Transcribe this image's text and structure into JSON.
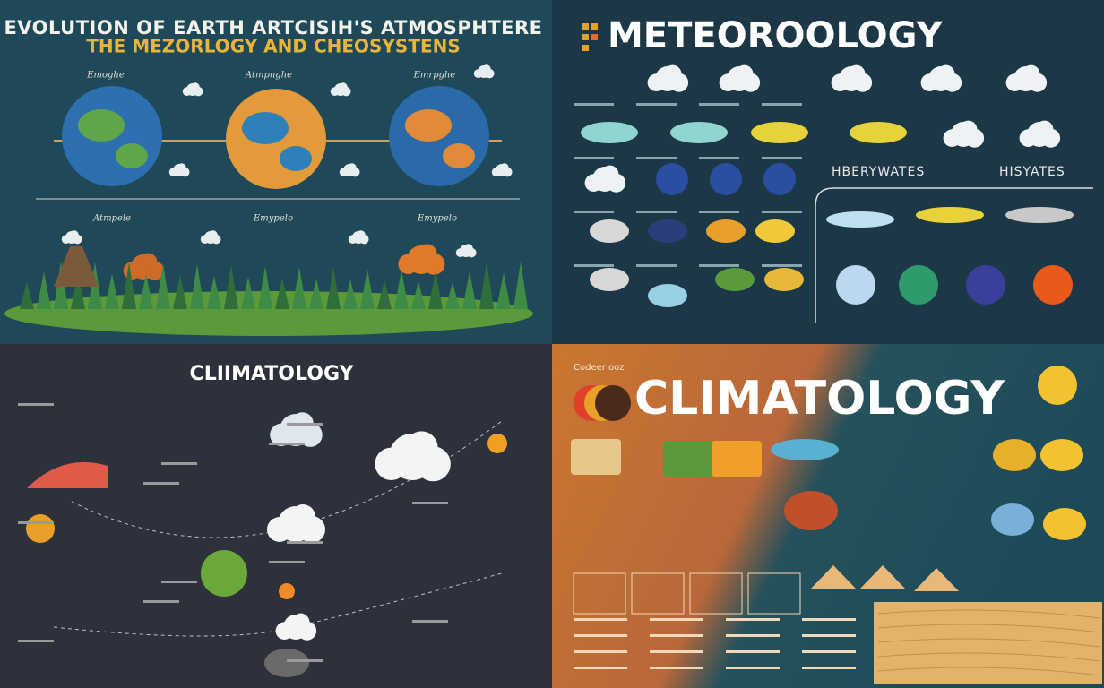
{
  "panels": [
    {
      "title": "EVOLUTION OF EARTH ARTCISIH'S ATMOSPHTERE",
      "subtitle": "THE MEZORLOGY AND CHEOSYSTENS",
      "labels": [
        "Emoghe",
        "Atmpnghe",
        "Emrpghe",
        "Atmpele",
        "Emypelo",
        "Emypelo"
      ]
    },
    {
      "title": "METEOROOLOGY",
      "labels": [
        "HBERYWATES",
        "HISYATES"
      ]
    },
    {
      "title": "CLIIMATOLOGY"
    },
    {
      "title": "CLIMATOLOGY",
      "labels": [
        "Codeer ooz"
      ]
    }
  ]
}
